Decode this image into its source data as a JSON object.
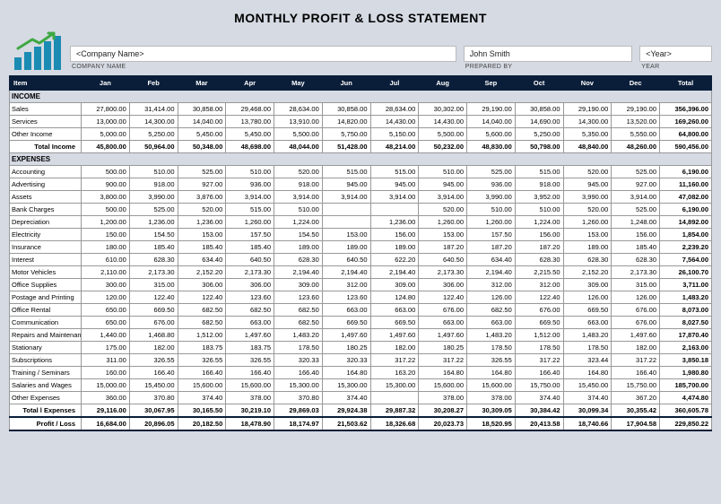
{
  "title": "MONTHLY PROFIT & LOSS STATEMENT",
  "meta": {
    "company": {
      "value": "<Company Name>",
      "label": "COMPANY NAME"
    },
    "prepared": {
      "value": "John Smith",
      "label": "PREPARED BY"
    },
    "year": {
      "value": "<Year>",
      "label": "YEAR"
    }
  },
  "columns": [
    "Item",
    "Jan",
    "Feb",
    "Mar",
    "Apr",
    "May",
    "Jun",
    "Jul",
    "Aug",
    "Sep",
    "Oct",
    "Nov",
    "Dec",
    "Total"
  ],
  "income": {
    "label": "INCOME",
    "rows": [
      {
        "item": "Sales",
        "v": [
          "27,800.00",
          "31,414.00",
          "30,858.00",
          "29,468.00",
          "28,634.00",
          "30,858.00",
          "28,634.00",
          "30,302.00",
          "29,190.00",
          "30,858.00",
          "29,190.00",
          "29,190.00"
        ],
        "t": "356,396.00"
      },
      {
        "item": "Services",
        "v": [
          "13,000.00",
          "14,300.00",
          "14,040.00",
          "13,780.00",
          "13,910.00",
          "14,820.00",
          "14,430.00",
          "14,430.00",
          "14,040.00",
          "14,690.00",
          "14,300.00",
          "13,520.00"
        ],
        "t": "169,260.00"
      },
      {
        "item": "Other Income",
        "v": [
          "5,000.00",
          "5,250.00",
          "5,450.00",
          "5,450.00",
          "5,500.00",
          "5,750.00",
          "5,150.00",
          "5,500.00",
          "5,600.00",
          "5,250.00",
          "5,350.00",
          "5,550.00"
        ],
        "t": "64,800.00"
      }
    ],
    "total": {
      "item": "Total Income",
      "v": [
        "45,800.00",
        "50,964.00",
        "50,348.00",
        "48,698.00",
        "48,044.00",
        "51,428.00",
        "48,214.00",
        "50,232.00",
        "48,830.00",
        "50,798.00",
        "48,840.00",
        "48,260.00"
      ],
      "t": "590,456.00"
    }
  },
  "expenses": {
    "label": "EXPENSES",
    "rows": [
      {
        "item": "Accounting",
        "v": [
          "500.00",
          "510.00",
          "525.00",
          "510.00",
          "520.00",
          "515.00",
          "515.00",
          "510.00",
          "525.00",
          "515.00",
          "520.00",
          "525.00"
        ],
        "t": "6,190.00"
      },
      {
        "item": "Advertising",
        "v": [
          "900.00",
          "918.00",
          "927.00",
          "936.00",
          "918.00",
          "945.00",
          "945.00",
          "945.00",
          "936.00",
          "918.00",
          "945.00",
          "927.00"
        ],
        "t": "11,160.00"
      },
      {
        "item": "Assets",
        "v": [
          "3,800.00",
          "3,990.00",
          "3,876.00",
          "3,914.00",
          "3,914.00",
          "3,914.00",
          "3,914.00",
          "3,914.00",
          "3,990.00",
          "3,952.00",
          "3,990.00",
          "3,914.00"
        ],
        "t": "47,082.00"
      },
      {
        "item": "Bank Charges",
        "v": [
          "500.00",
          "525.00",
          "520.00",
          "515.00",
          "510.00",
          "",
          "",
          "520.00",
          "510.00",
          "510.00",
          "520.00",
          "525.00"
        ],
        "t": "6,190.00"
      },
      {
        "item": "Depreciation",
        "v": [
          "1,200.00",
          "1,236.00",
          "1,236.00",
          "1,260.00",
          "1,224.00",
          "",
          "1,236.00",
          "1,260.00",
          "1,260.00",
          "1,224.00",
          "1,260.00",
          "1,248.00"
        ],
        "t": "14,892.00"
      },
      {
        "item": "Electricity",
        "v": [
          "150.00",
          "154.50",
          "153.00",
          "157.50",
          "154.50",
          "153.00",
          "156.00",
          "153.00",
          "157.50",
          "156.00",
          "153.00",
          "156.00"
        ],
        "t": "1,854.00"
      },
      {
        "item": "Insurance",
        "v": [
          "180.00",
          "185.40",
          "185.40",
          "185.40",
          "189.00",
          "189.00",
          "189.00",
          "187.20",
          "187.20",
          "187.20",
          "189.00",
          "185.40"
        ],
        "t": "2,239.20"
      },
      {
        "item": "Interest",
        "v": [
          "610.00",
          "628.30",
          "634.40",
          "640.50",
          "628.30",
          "640.50",
          "622.20",
          "640.50",
          "634.40",
          "628.30",
          "628.30",
          "628.30"
        ],
        "t": "7,564.00"
      },
      {
        "item": "Motor Vehicles",
        "v": [
          "2,110.00",
          "2,173.30",
          "2,152.20",
          "2,173.30",
          "2,194.40",
          "2,194.40",
          "2,194.40",
          "2,173.30",
          "2,194.40",
          "2,215.50",
          "2,152.20",
          "2,173.30"
        ],
        "t": "26,100.70"
      },
      {
        "item": "Office Supplies",
        "v": [
          "300.00",
          "315.00",
          "306.00",
          "306.00",
          "309.00",
          "312.00",
          "309.00",
          "306.00",
          "312.00",
          "312.00",
          "309.00",
          "315.00"
        ],
        "t": "3,711.00"
      },
      {
        "item": "Postage and Printing",
        "v": [
          "120.00",
          "122.40",
          "122.40",
          "123.60",
          "123.60",
          "123.60",
          "124.80",
          "122.40",
          "126.00",
          "122.40",
          "126.00",
          "126.00"
        ],
        "t": "1,483.20"
      },
      {
        "item": "Office Rental",
        "v": [
          "650.00",
          "669.50",
          "682.50",
          "682.50",
          "682.50",
          "663.00",
          "663.00",
          "676.00",
          "682.50",
          "676.00",
          "669.50",
          "676.00"
        ],
        "t": "8,073.00"
      },
      {
        "item": "Communication",
        "v": [
          "650.00",
          "676.00",
          "682.50",
          "663.00",
          "682.50",
          "669.50",
          "669.50",
          "663.00",
          "663.00",
          "669.50",
          "663.00",
          "676.00"
        ],
        "t": "8,027.50"
      },
      {
        "item": "Repairs and Maintenance",
        "v": [
          "1,440.00",
          "1,468.80",
          "1,512.00",
          "1,497.60",
          "1,483.20",
          "1,497.60",
          "1,497.60",
          "1,497.60",
          "1,483.20",
          "1,512.00",
          "1,483.20",
          "1,497.60"
        ],
        "t": "17,870.40"
      },
      {
        "item": "Stationary",
        "v": [
          "175.00",
          "182.00",
          "183.75",
          "183.75",
          "178.50",
          "180.25",
          "182.00",
          "180.25",
          "178.50",
          "178.50",
          "178.50",
          "182.00"
        ],
        "t": "2,163.00"
      },
      {
        "item": "Subscriptions",
        "v": [
          "311.00",
          "326.55",
          "326.55",
          "326.55",
          "320.33",
          "320.33",
          "317.22",
          "317.22",
          "326.55",
          "317.22",
          "323.44",
          "317.22"
        ],
        "t": "3,850.18"
      },
      {
        "item": "Training / Seminars",
        "v": [
          "160.00",
          "166.40",
          "166.40",
          "166.40",
          "166.40",
          "164.80",
          "163.20",
          "164.80",
          "164.80",
          "166.40",
          "164.80",
          "166.40"
        ],
        "t": "1,980.80"
      },
      {
        "item": "Salaries and Wages",
        "v": [
          "15,000.00",
          "15,450.00",
          "15,600.00",
          "15,600.00",
          "15,300.00",
          "15,300.00",
          "15,300.00",
          "15,600.00",
          "15,600.00",
          "15,750.00",
          "15,450.00",
          "15,750.00"
        ],
        "t": "185,700.00"
      },
      {
        "item": "Other Expenses",
        "v": [
          "360.00",
          "370.80",
          "374.40",
          "378.00",
          "370.80",
          "374.40",
          "",
          "378.00",
          "378.00",
          "374.40",
          "374.40",
          "367.20"
        ],
        "t": "4,474.80"
      }
    ],
    "total": {
      "item": "Total l Expenses",
      "v": [
        "29,116.00",
        "30,067.95",
        "30,165.50",
        "30,219.10",
        "29,869.03",
        "29,924.38",
        "29,887.32",
        "30,208.27",
        "30,309.05",
        "30,384.42",
        "30,099.34",
        "30,355.42"
      ],
      "t": "360,605.78"
    }
  },
  "profitloss": {
    "item": "Profit / Loss",
    "v": [
      "16,684.00",
      "20,896.05",
      "20,182.50",
      "18,478.90",
      "18,174.97",
      "21,503.62",
      "18,326.68",
      "20,023.73",
      "18,520.95",
      "20,413.58",
      "18,740.66",
      "17,904.58"
    ],
    "t": "229,850.22"
  },
  "style": {
    "header_bg": "#0a1e3a",
    "header_fg": "#ffffff",
    "page_bg": "#d5dae3",
    "cell_bg": "#ffffff",
    "border": "#999999",
    "logo_bar": "#1a8bb3",
    "logo_arrow": "#3fa843",
    "font_size_body": 7.5,
    "font_size_title": 14
  }
}
